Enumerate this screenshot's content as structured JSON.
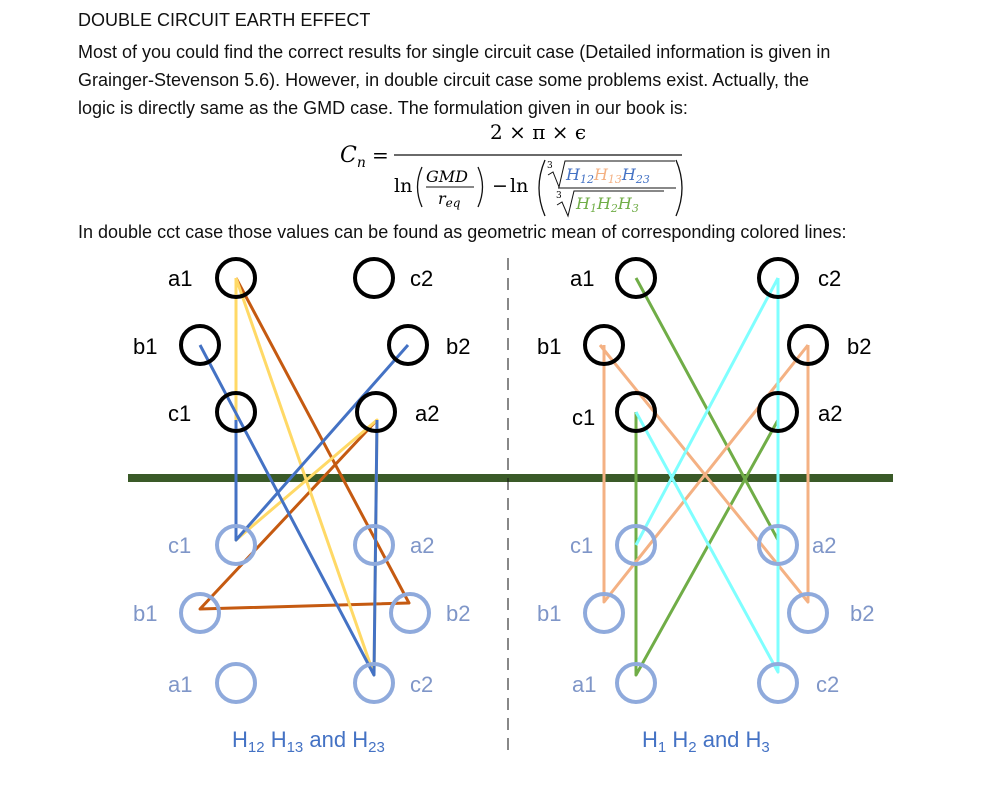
{
  "heading": "DOUBLE CIRCUIT EARTH EFFECT",
  "paragraph": [
    "Most of you could find the correct results for single circuit case (Detailed information is given in",
    "Grainger-Stevenson 5.6). However, in double circuit case some problems exist. Actually, the",
    "logic is directly same as the GMD case. The formulation given in our book is:"
  ],
  "formula": {
    "lhs": "C",
    "lhs_sub": "n",
    "equals": "=",
    "numerator": "2 × π × ϵ",
    "ln": "ln",
    "gmd": "GMD",
    "req": "r",
    "req_sub": "eq",
    "minus": "−",
    "root_index": "3",
    "h": "H",
    "h12_sub": "12",
    "h13_sub": "13",
    "h23_sub": "23",
    "h1_sub": "1",
    "h2_sub": "2",
    "h3_sub": "3"
  },
  "subline": "In double cct case those values can be found as geometric mean of corresponding colored lines:",
  "left_panel": {
    "top_labels": [
      "a1",
      "c2",
      "b1",
      "b2",
      "c1",
      "a2"
    ],
    "image_labels": [
      "c1",
      "a2",
      "b1",
      "b2",
      "a1",
      "c2"
    ],
    "caption": {
      "h": "H",
      "s1": "12",
      "s2": "13",
      "s3": "23",
      "and": " and "
    }
  },
  "right_panel": {
    "top_labels": [
      "a1",
      "c2",
      "b1",
      "b2",
      "c1",
      "a2"
    ],
    "image_labels": [
      "c1",
      "a2",
      "b1",
      "b2",
      "a1",
      "c2"
    ],
    "caption": {
      "h": "H",
      "s1": "1",
      "s2": "2",
      "s3": "3",
      "and": " and "
    }
  },
  "colors": {
    "ground": "#3A5A28",
    "conductor": "#000000",
    "image_conductor": "#8FAADC",
    "image_label": "#7F96C8",
    "h12": "#4472C4",
    "h13": "#C55A11",
    "h23": "#FFD966",
    "h1": "#70AD47",
    "h2": "#F4B183",
    "h3": "#7FFFFF",
    "caption": "#4472C4"
  }
}
